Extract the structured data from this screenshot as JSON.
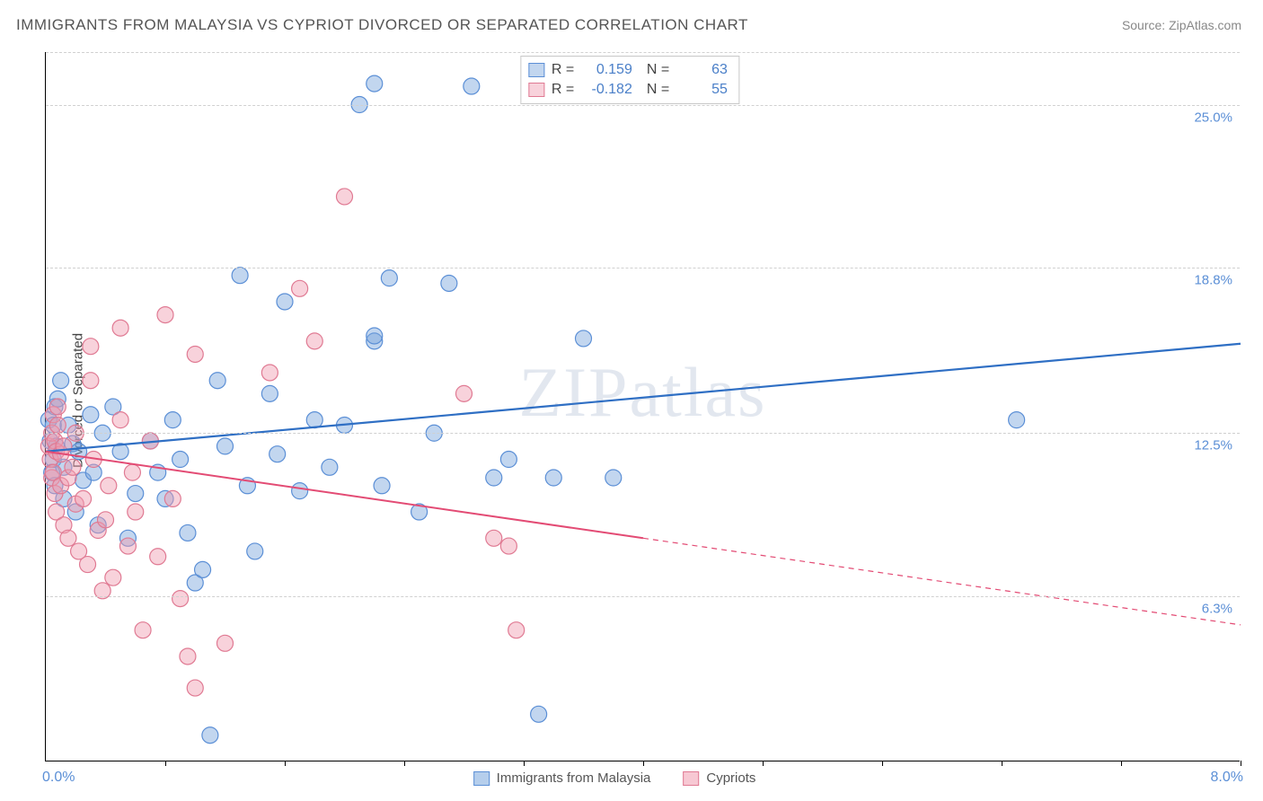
{
  "title": "IMMIGRANTS FROM MALAYSIA VS CYPRIOT DIVORCED OR SEPARATED CORRELATION CHART",
  "source_label": "Source: ",
  "source_name": "ZipAtlas.com",
  "watermark": "ZIPatlas",
  "chart": {
    "type": "scatter",
    "ylabel": "Divorced or Separated",
    "xmin_label": "0.0%",
    "xmax_label": "8.0%",
    "xlim": [
      0,
      8
    ],
    "ylim": [
      0,
      27
    ],
    "ytick_labels": [
      "6.3%",
      "12.5%",
      "18.8%",
      "25.0%"
    ],
    "ytick_values": [
      6.3,
      12.5,
      18.8,
      25.0
    ],
    "xtick_values": [
      0.8,
      1.6,
      2.4,
      3.2,
      4.0,
      4.8,
      5.6,
      6.4,
      7.2,
      8.0
    ],
    "grid_color": "#d0d0d0",
    "background_color": "#ffffff",
    "label_color": "#5b8fd6",
    "marker_radius": 9,
    "marker_stroke_width": 1.2,
    "series": [
      {
        "name": "Immigrants from Malaysia",
        "color_fill": "rgba(120,165,220,0.45)",
        "color_stroke": "#5b8fd6",
        "r": "0.159",
        "n": "63",
        "trend": {
          "y_at_xmin": 11.8,
          "y_at_xmax": 15.9,
          "solid_until_x": 8.0,
          "line_color": "#2f6fc4",
          "line_width": 2.2
        },
        "points": [
          [
            0.02,
            13.0
          ],
          [
            0.03,
            12.2
          ],
          [
            0.04,
            11.0
          ],
          [
            0.05,
            12.8
          ],
          [
            0.05,
            11.5
          ],
          [
            0.06,
            13.5
          ],
          [
            0.06,
            10.5
          ],
          [
            0.07,
            12.0
          ],
          [
            0.08,
            13.8
          ],
          [
            0.1,
            14.5
          ],
          [
            0.12,
            11.2
          ],
          [
            0.12,
            10.0
          ],
          [
            0.15,
            12.8
          ],
          [
            0.18,
            12.1
          ],
          [
            0.2,
            9.5
          ],
          [
            0.22,
            11.8
          ],
          [
            0.25,
            10.7
          ],
          [
            0.3,
            13.2
          ],
          [
            0.32,
            11.0
          ],
          [
            0.35,
            9.0
          ],
          [
            0.38,
            12.5
          ],
          [
            0.45,
            13.5
          ],
          [
            0.5,
            11.8
          ],
          [
            0.55,
            8.5
          ],
          [
            0.6,
            10.2
          ],
          [
            0.7,
            12.2
          ],
          [
            0.75,
            11.0
          ],
          [
            0.8,
            10.0
          ],
          [
            0.85,
            13.0
          ],
          [
            0.9,
            11.5
          ],
          [
            0.95,
            8.7
          ],
          [
            1.0,
            6.8
          ],
          [
            1.05,
            7.3
          ],
          [
            1.1,
            1.0
          ],
          [
            1.15,
            14.5
          ],
          [
            1.2,
            12.0
          ],
          [
            1.3,
            18.5
          ],
          [
            1.35,
            10.5
          ],
          [
            1.4,
            8.0
          ],
          [
            1.5,
            14.0
          ],
          [
            1.55,
            11.7
          ],
          [
            1.6,
            17.5
          ],
          [
            1.7,
            10.3
          ],
          [
            1.8,
            13.0
          ],
          [
            1.9,
            11.2
          ],
          [
            2.0,
            12.8
          ],
          [
            2.1,
            25.0
          ],
          [
            2.2,
            25.8
          ],
          [
            2.2,
            16.0
          ],
          [
            2.2,
            16.2
          ],
          [
            2.25,
            10.5
          ],
          [
            2.3,
            18.4
          ],
          [
            2.5,
            9.5
          ],
          [
            2.6,
            12.5
          ],
          [
            2.7,
            18.2
          ],
          [
            2.85,
            25.7
          ],
          [
            3.0,
            10.8
          ],
          [
            3.1,
            11.5
          ],
          [
            3.3,
            1.8
          ],
          [
            3.4,
            10.8
          ],
          [
            3.6,
            16.1
          ],
          [
            3.8,
            10.8
          ],
          [
            6.5,
            13.0
          ]
        ]
      },
      {
        "name": "Cypriots",
        "color_fill": "rgba(240,155,175,0.45)",
        "color_stroke": "#e07a93",
        "r": "-0.182",
        "n": "55",
        "trend": {
          "y_at_xmin": 11.8,
          "y_at_xmax": 5.2,
          "solid_until_x": 4.0,
          "line_color": "#e34b74",
          "line_width": 2.0
        },
        "points": [
          [
            0.02,
            12.0
          ],
          [
            0.03,
            11.5
          ],
          [
            0.04,
            12.5
          ],
          [
            0.04,
            10.8
          ],
          [
            0.05,
            13.2
          ],
          [
            0.05,
            11.0
          ],
          [
            0.06,
            12.2
          ],
          [
            0.06,
            10.2
          ],
          [
            0.07,
            11.8
          ],
          [
            0.07,
            9.5
          ],
          [
            0.08,
            12.8
          ],
          [
            0.08,
            13.5
          ],
          [
            0.1,
            10.5
          ],
          [
            0.1,
            11.7
          ],
          [
            0.12,
            12.0
          ],
          [
            0.12,
            9.0
          ],
          [
            0.15,
            10.8
          ],
          [
            0.15,
            8.5
          ],
          [
            0.18,
            11.2
          ],
          [
            0.2,
            12.5
          ],
          [
            0.2,
            9.8
          ],
          [
            0.22,
            8.0
          ],
          [
            0.25,
            10.0
          ],
          [
            0.28,
            7.5
          ],
          [
            0.3,
            14.5
          ],
          [
            0.3,
            15.8
          ],
          [
            0.32,
            11.5
          ],
          [
            0.35,
            8.8
          ],
          [
            0.38,
            6.5
          ],
          [
            0.4,
            9.2
          ],
          [
            0.42,
            10.5
          ],
          [
            0.45,
            7.0
          ],
          [
            0.5,
            13.0
          ],
          [
            0.5,
            16.5
          ],
          [
            0.55,
            8.2
          ],
          [
            0.58,
            11.0
          ],
          [
            0.6,
            9.5
          ],
          [
            0.65,
            5.0
          ],
          [
            0.7,
            12.2
          ],
          [
            0.75,
            7.8
          ],
          [
            0.8,
            17.0
          ],
          [
            0.85,
            10.0
          ],
          [
            0.9,
            6.2
          ],
          [
            0.95,
            4.0
          ],
          [
            1.0,
            15.5
          ],
          [
            1.0,
            2.8
          ],
          [
            1.2,
            4.5
          ],
          [
            1.5,
            14.8
          ],
          [
            1.7,
            18.0
          ],
          [
            1.8,
            16.0
          ],
          [
            2.0,
            21.5
          ],
          [
            2.8,
            14.0
          ],
          [
            3.0,
            8.5
          ],
          [
            3.1,
            8.2
          ],
          [
            3.15,
            5.0
          ]
        ]
      }
    ],
    "legend_bottom": [
      {
        "label": "Immigrants from Malaysia",
        "fill": "rgba(120,165,220,0.55)",
        "stroke": "#5b8fd6"
      },
      {
        "label": "Cypriots",
        "fill": "rgba(240,155,175,0.55)",
        "stroke": "#e07a93"
      }
    ]
  }
}
